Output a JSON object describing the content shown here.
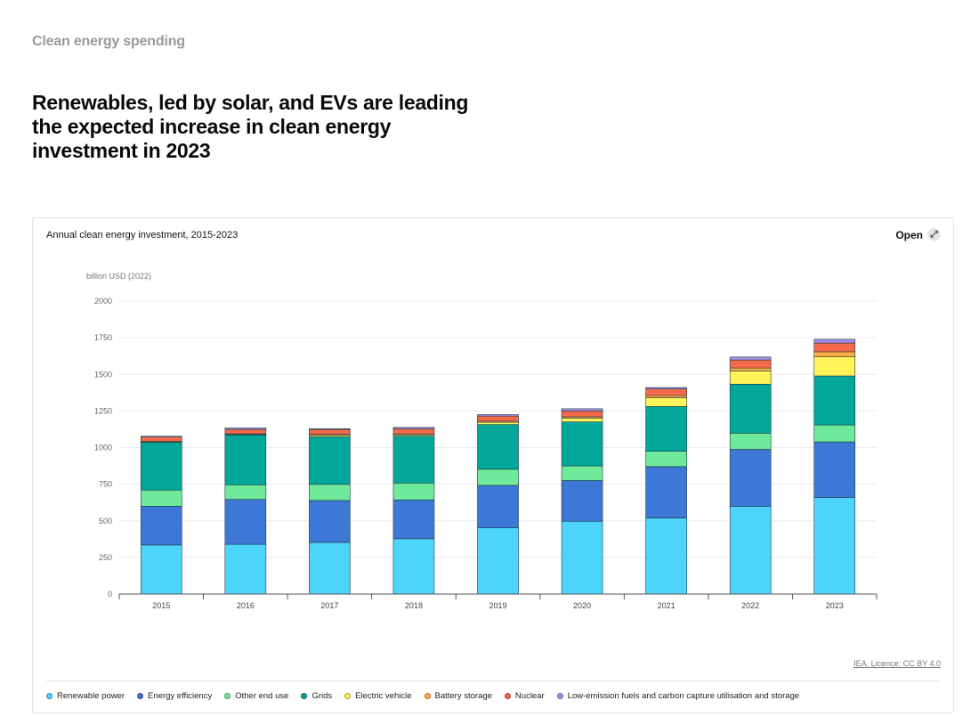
{
  "section_label": "Clean energy spending",
  "headline": "Renewables, led by solar, and EVs are leading the expected increase in clean energy investment in 2023",
  "card": {
    "title": "Annual clean energy investment, 2015-2023",
    "open_label": "Open",
    "open_icon": "expand-arrows-icon",
    "licence": "IEA. Licence: CC BY 4.0"
  },
  "chart_data": {
    "type": "bar",
    "stacked": true,
    "title": "Annual clean energy investment, 2015-2023",
    "ylabel": "billion USD (2022)",
    "ylim": [
      0,
      2000
    ],
    "yticks": [
      0,
      250,
      500,
      750,
      1000,
      1250,
      1500,
      1750,
      2000
    ],
    "grid": true,
    "legend_position": "bottom",
    "categories": [
      "2015",
      "2016",
      "2017",
      "2018",
      "2019",
      "2020",
      "2021",
      "2022",
      "2023"
    ],
    "series": [
      {
        "name": "Renewable power",
        "color": "#4dd4fb",
        "values": [
          335,
          340,
          352,
          378,
          452,
          497,
          520,
          598,
          659
        ]
      },
      {
        "name": "Energy efficiency",
        "color": "#3e78d6",
        "values": [
          265,
          306,
          287,
          265,
          290,
          278,
          350,
          390,
          380
        ]
      },
      {
        "name": "Other end use",
        "color": "#6fe99a",
        "values": [
          110,
          100,
          110,
          115,
          110,
          100,
          105,
          110,
          115
        ]
      },
      {
        "name": "Grids",
        "color": "#00a79a",
        "values": [
          325,
          340,
          325,
          320,
          305,
          300,
          305,
          335,
          335
        ]
      },
      {
        "name": "Electric vehicle",
        "color": "#fff35a",
        "values": [
          5,
          5,
          10,
          10,
          15,
          25,
          60,
          90,
          130
        ]
      },
      {
        "name": "Battery storage",
        "color": "#ffae42",
        "values": [
          2,
          3,
          5,
          5,
          8,
          10,
          15,
          20,
          35
        ]
      },
      {
        "name": "Nuclear",
        "color": "#f4694a",
        "values": [
          30,
          30,
          35,
          35,
          35,
          40,
          45,
          55,
          60
        ]
      },
      {
        "name": "Low-emission fuels and carbon capture utilisation and storage",
        "color": "#a68ee8",
        "values": [
          5,
          10,
          5,
          10,
          10,
          15,
          10,
          20,
          25
        ]
      }
    ]
  }
}
